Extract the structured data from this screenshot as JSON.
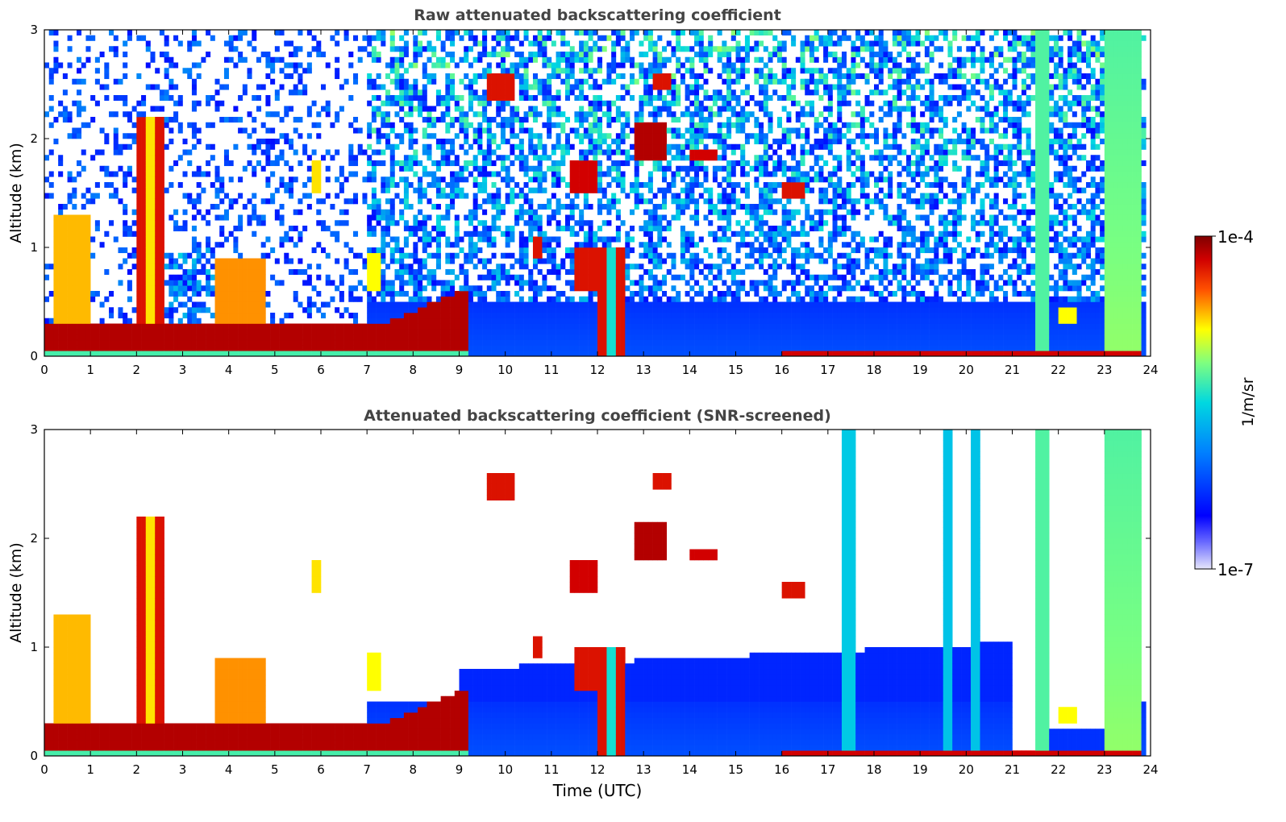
{
  "chart_data": [
    {
      "type": "heatmap",
      "title": "Raw attenuated backscattering coefficient",
      "xlabel": "",
      "ylabel": "Altitude (km)",
      "xlim": [
        0,
        24
      ],
      "ylim": [
        0,
        3
      ],
      "xticks": [
        "0",
        "1",
        "2",
        "3",
        "4",
        "5",
        "6",
        "7",
        "8",
        "9",
        "10",
        "11",
        "12",
        "13",
        "14",
        "15",
        "16",
        "17",
        "18",
        "19",
        "20",
        "21",
        "22",
        "23",
        "24"
      ],
      "yticks": [
        "0",
        "1",
        "2",
        "3"
      ],
      "features": [
        {
          "name": "boundary-layer aerosol band",
          "t0": 0,
          "t1": 9.2,
          "alt_low": 0.05,
          "alt_high": 0.3,
          "level": "high"
        },
        {
          "name": "thick aerosol/cloud column",
          "t0": 2.0,
          "t1": 2.6,
          "alt_low": 0.0,
          "alt_high": 2.2,
          "level": "high"
        },
        {
          "name": "rising mixed layer",
          "t0": 7.2,
          "t1": 9.3,
          "alt_low": 0.2,
          "alt_high": 0.6,
          "level": "high"
        },
        {
          "name": "low-level clear-air signal",
          "t0": 7.0,
          "t1": 24.0,
          "alt_low": 0.0,
          "alt_high": 0.5,
          "level": "low"
        },
        {
          "name": "cloud column",
          "t0": 12.0,
          "t1": 12.6,
          "alt_low": 0.0,
          "alt_high": 1.0,
          "level": "high"
        },
        {
          "name": "cloud patch",
          "t0": 12.8,
          "t1": 13.5,
          "alt_low": 1.8,
          "alt_high": 2.1,
          "level": "high"
        },
        {
          "name": "cloud patch",
          "t0": 11.4,
          "t1": 12.0,
          "alt_low": 1.5,
          "alt_high": 1.8,
          "level": "high"
        },
        {
          "name": "cloud patch",
          "t0": 14.0,
          "t1": 14.6,
          "alt_low": 1.75,
          "alt_high": 1.9,
          "level": "high"
        },
        {
          "name": "cloud patch",
          "t0": 16.0,
          "t1": 16.5,
          "alt_low": 1.45,
          "alt_high": 1.6,
          "level": "high"
        },
        {
          "name": "noise column",
          "t0": 21.5,
          "t1": 21.8,
          "alt_low": 0.0,
          "alt_high": 3.0,
          "level": "mid"
        },
        {
          "name": "noise column",
          "t0": 23.0,
          "t1": 23.8,
          "alt_low": 0.0,
          "alt_high": 3.0,
          "level": "mid"
        },
        {
          "name": "surface layer",
          "t0": 16.0,
          "t1": 23.8,
          "alt_low": 0.0,
          "alt_high": 0.08,
          "level": "high"
        }
      ]
    },
    {
      "type": "heatmap",
      "title": "Attenuated backscattering coefficient (SNR-screened)",
      "xlabel": "Time (UTC)",
      "ylabel": "Altitude (km)",
      "xlim": [
        0,
        24
      ],
      "ylim": [
        0,
        3
      ],
      "xticks": [
        "0",
        "1",
        "2",
        "3",
        "4",
        "5",
        "6",
        "7",
        "8",
        "9",
        "10",
        "11",
        "12",
        "13",
        "14",
        "15",
        "16",
        "17",
        "18",
        "19",
        "20",
        "21",
        "22",
        "23",
        "24"
      ],
      "yticks": [
        "0",
        "1",
        "2",
        "3"
      ],
      "features": [
        {
          "name": "boundary-layer aerosol band",
          "t0": 0,
          "t1": 9.2,
          "alt_low": 0.05,
          "alt_high": 0.3,
          "level": "high"
        },
        {
          "name": "thick aerosol/cloud column",
          "t0": 2.0,
          "t1": 2.6,
          "alt_low": 0.0,
          "alt_high": 2.2,
          "level": "high"
        },
        {
          "name": "cloud column",
          "t0": 12.0,
          "t1": 12.6,
          "alt_low": 0.0,
          "alt_high": 1.0,
          "level": "high"
        },
        {
          "name": "screened clear-air signal",
          "t0": 9.0,
          "t1": 21.0,
          "alt_low": 0.0,
          "alt_high": 0.8,
          "level": "low"
        },
        {
          "name": "residual layer column",
          "t0": 17.3,
          "t1": 17.6,
          "alt_low": 0.0,
          "alt_high": 3.0,
          "level": "mid"
        },
        {
          "name": "noise column",
          "t0": 21.5,
          "t1": 21.8,
          "alt_low": 0.0,
          "alt_high": 3.0,
          "level": "mid"
        },
        {
          "name": "noise column",
          "t0": 23.0,
          "t1": 23.8,
          "alt_low": 0.0,
          "alt_high": 3.0,
          "level": "mid"
        }
      ]
    }
  ],
  "colorbar": {
    "label": "1/m/sr",
    "max_label": "1e-4",
    "min_label": "1e-7",
    "colormap": [
      "#e6e6fa",
      "#0000ff",
      "#00c8ff",
      "#7fff7f",
      "#ffff00",
      "#ff4500",
      "#800000"
    ]
  }
}
